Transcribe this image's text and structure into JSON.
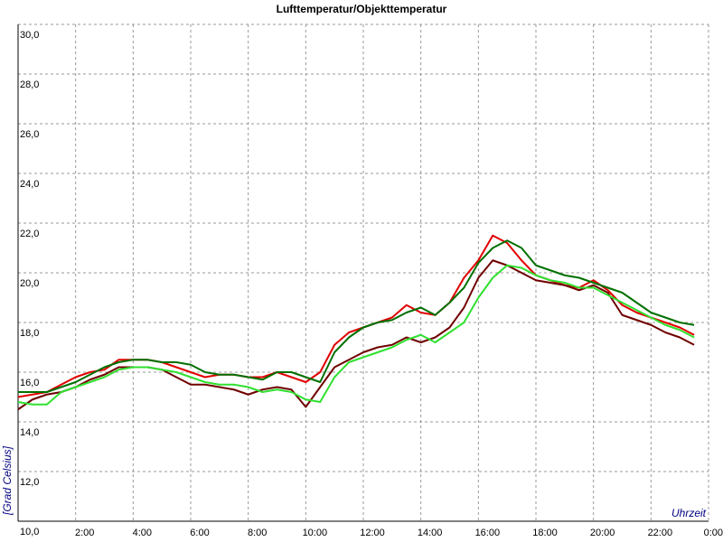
{
  "chart_data": {
    "type": "line",
    "title": "Lufttemperatur/Objekttemperatur",
    "x_label": "Uhrzeit",
    "y_label": "[Grad Celsius]",
    "x": [
      0,
      0.5,
      1,
      1.5,
      2,
      2.5,
      3,
      3.5,
      4,
      4.5,
      5,
      5.5,
      6,
      6.5,
      7,
      7.5,
      8,
      8.5,
      9,
      9.5,
      10,
      10.5,
      11,
      11.5,
      12,
      12.5,
      13,
      13.5,
      14,
      14.5,
      15,
      15.5,
      16,
      16.5,
      17,
      17.5,
      18,
      18.5,
      19,
      19.5,
      20,
      20.5,
      21,
      21.5,
      22,
      22.5,
      23,
      23.5
    ],
    "series": [
      {
        "color": "#e00000",
        "values": [
          15.0,
          15.1,
          15.2,
          15.5,
          15.8,
          16.0,
          16.1,
          16.5,
          16.5,
          16.5,
          16.4,
          16.2,
          16.0,
          15.8,
          15.9,
          15.9,
          15.8,
          15.8,
          16.0,
          15.8,
          15.6,
          16.0,
          17.1,
          17.6,
          17.8,
          18.0,
          18.2,
          18.7,
          18.4,
          18.3,
          18.8,
          19.8,
          20.5,
          21.5,
          21.2,
          20.5,
          19.9,
          19.7,
          19.5,
          19.4,
          19.7,
          19.3,
          18.7,
          18.4,
          18.2,
          18.0,
          17.8,
          17.5
        ]
      },
      {
        "color": "#700000",
        "values": [
          14.5,
          14.9,
          15.1,
          15.2,
          15.4,
          15.7,
          15.9,
          16.2,
          16.2,
          16.2,
          16.1,
          15.8,
          15.5,
          15.5,
          15.4,
          15.3,
          15.1,
          15.3,
          15.4,
          15.3,
          14.6,
          15.4,
          16.2,
          16.5,
          16.8,
          17.0,
          17.1,
          17.4,
          17.2,
          17.4,
          17.8,
          18.6,
          19.8,
          20.5,
          20.3,
          20.0,
          19.7,
          19.6,
          19.5,
          19.3,
          19.5,
          19.2,
          18.3,
          18.1,
          17.9,
          17.6,
          17.4,
          17.1
        ]
      },
      {
        "color": "#007000",
        "values": [
          15.2,
          15.2,
          15.2,
          15.4,
          15.6,
          15.9,
          16.2,
          16.4,
          16.5,
          16.5,
          16.4,
          16.4,
          16.3,
          16.0,
          15.9,
          15.9,
          15.8,
          15.7,
          16.0,
          16.0,
          15.8,
          15.6,
          16.8,
          17.4,
          17.8,
          18.0,
          18.1,
          18.4,
          18.6,
          18.3,
          18.8,
          19.4,
          20.4,
          21.0,
          21.3,
          21.0,
          20.3,
          20.1,
          19.9,
          19.8,
          19.6,
          19.4,
          19.2,
          18.8,
          18.4,
          18.2,
          18.0,
          17.9
        ]
      },
      {
        "color": "#30e030",
        "values": [
          14.8,
          14.7,
          14.7,
          15.2,
          15.4,
          15.6,
          15.8,
          16.1,
          16.2,
          16.2,
          16.1,
          16.0,
          15.8,
          15.6,
          15.5,
          15.5,
          15.4,
          15.2,
          15.3,
          15.2,
          14.9,
          14.8,
          15.8,
          16.4,
          16.6,
          16.8,
          17.0,
          17.3,
          17.5,
          17.2,
          17.6,
          18.0,
          19.0,
          19.8,
          20.3,
          20.2,
          19.9,
          19.7,
          19.6,
          19.4,
          19.4,
          19.1,
          18.8,
          18.5,
          18.2,
          17.9,
          17.7,
          17.4
        ]
      }
    ],
    "xlim": [
      0,
      24
    ],
    "xticks": [
      {
        "value": 2,
        "label": "2:00"
      },
      {
        "value": 4,
        "label": "4:00"
      },
      {
        "value": 6,
        "label": "6:00"
      },
      {
        "value": 8,
        "label": "8:00"
      },
      {
        "value": 10,
        "label": "10:00"
      },
      {
        "value": 12,
        "label": "12:00"
      },
      {
        "value": 14,
        "label": "14:00"
      },
      {
        "value": 16,
        "label": "16:00"
      },
      {
        "value": 18,
        "label": "18:00"
      },
      {
        "value": 20,
        "label": "20:00"
      },
      {
        "value": 22,
        "label": "22:00"
      },
      {
        "value": 24,
        "label": "0:00"
      }
    ],
    "ylim": [
      10,
      30
    ],
    "yticks": [
      {
        "value": 10,
        "label": "10,0"
      },
      {
        "value": 12,
        "label": "12,0"
      },
      {
        "value": 14,
        "label": "14,0"
      },
      {
        "value": 16,
        "label": "16,0"
      },
      {
        "value": 18,
        "label": "18,0"
      },
      {
        "value": 20,
        "label": "20,0"
      },
      {
        "value": 22,
        "label": "22,0"
      },
      {
        "value": 24,
        "label": "24,0"
      },
      {
        "value": 26,
        "label": "26,0"
      },
      {
        "value": 28,
        "label": "28,0"
      },
      {
        "value": 30,
        "label": "30,0"
      }
    ],
    "grid": true
  }
}
